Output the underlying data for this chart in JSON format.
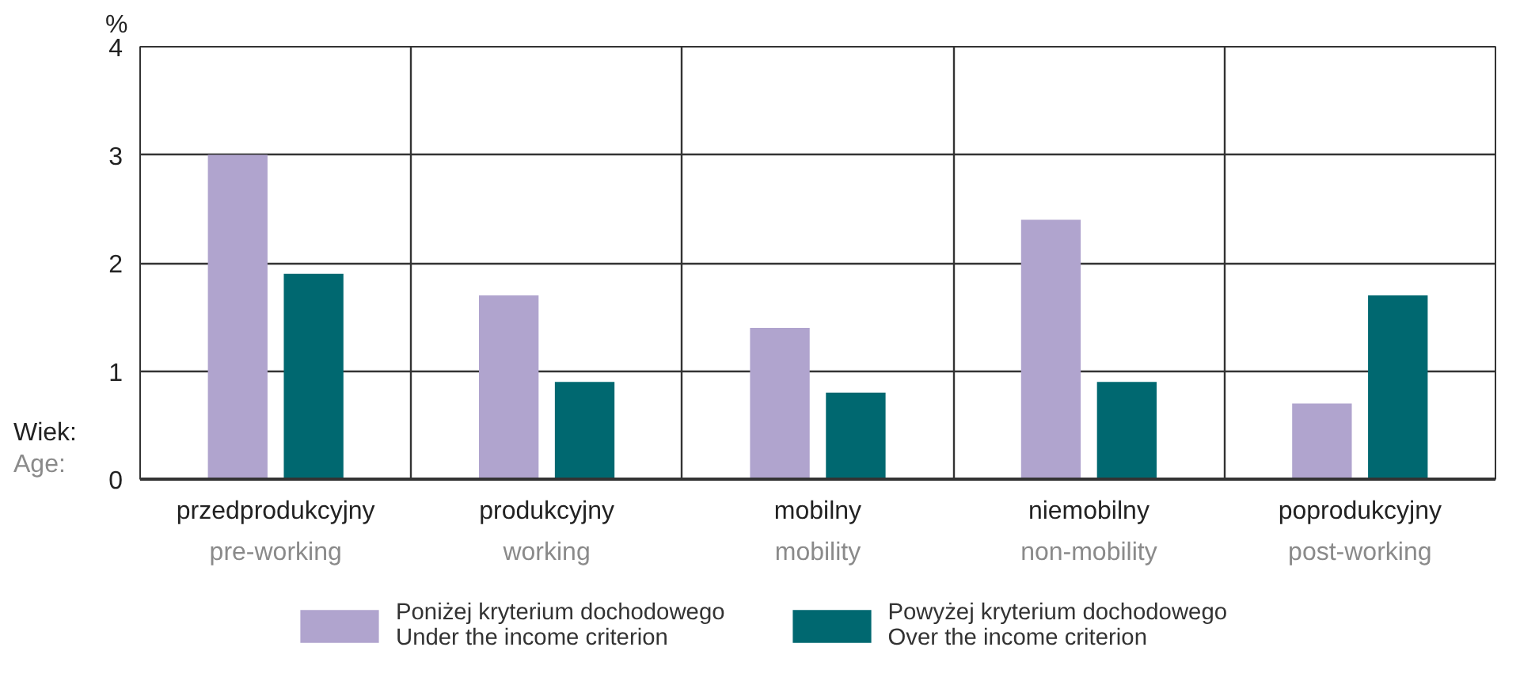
{
  "chart_data": {
    "type": "bar",
    "ylabel": "%",
    "xlabel": "Wiek:\nAge:",
    "categories": [
      "przedprodukcyjny\npre-working",
      "produkcyjny\nworking",
      "mobilny\nmobility",
      "niemobilny\nnon-mobility",
      "poprodukcyjny\npost-working"
    ],
    "series": [
      {
        "name": "Poniżej kryterium dochodowego\nUnder the income criterion",
        "color": "#b0a4ce",
        "values": [
          3.0,
          1.7,
          1.4,
          2.4,
          0.7
        ]
      },
      {
        "name": "Powyżej kryterium dochodowego\nOver the income criterion",
        "color": "#006870",
        "values": [
          1.9,
          0.9,
          0.8,
          0.9,
          1.7
        ]
      }
    ],
    "ylim": [
      0,
      4
    ],
    "yticks": [
      0,
      1,
      2,
      3,
      4
    ],
    "grid": true,
    "legend": "bottom"
  }
}
